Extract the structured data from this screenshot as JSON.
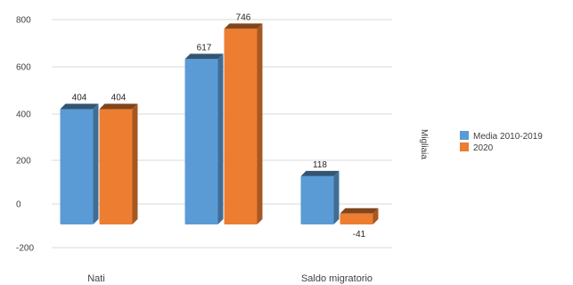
{
  "chart_data": {
    "type": "bar",
    "categories": [
      "Nati",
      "",
      "Saldo migratorio"
    ],
    "series": [
      {
        "name": "Media 2010-2019",
        "values": [
          404,
          617,
          118
        ],
        "labels": [
          "404",
          "617",
          "118"
        ],
        "color": "#5b9bd5"
      },
      {
        "name": "2020",
        "values": [
          404,
          746,
          -41
        ],
        "labels": [
          "404",
          "746",
          "-41"
        ],
        "color": "#ed7d31"
      }
    ],
    "ylabel": "Migliaia",
    "ylim": [
      -100,
      800
    ],
    "yticks": [
      800,
      600,
      400,
      200,
      0,
      -200
    ],
    "grid": true,
    "legend_position": "right"
  }
}
